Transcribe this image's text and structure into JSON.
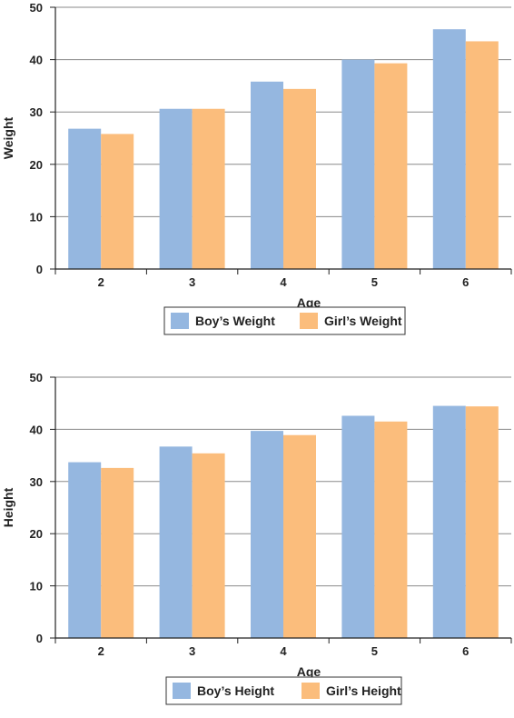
{
  "chart_data": [
    {
      "type": "bar",
      "categories": [
        "2",
        "3",
        "4",
        "5",
        "6"
      ],
      "series": [
        {
          "name": "Boy’s Weight",
          "values": [
            26.8,
            30.6,
            35.8,
            40.0,
            45.8
          ]
        },
        {
          "name": "Girl’s Weight",
          "values": [
            25.8,
            30.6,
            34.4,
            39.3,
            43.5
          ]
        }
      ],
      "title": "",
      "xlabel": "Age",
      "ylabel": "Weight",
      "ylim": [
        0,
        50
      ],
      "yticks": [
        "0",
        "10",
        "20",
        "30",
        "40",
        "50"
      ],
      "grid": true,
      "legend_position": "bottom",
      "colors": [
        "#95b7e0",
        "#fbbd7c"
      ]
    },
    {
      "type": "bar",
      "categories": [
        "2",
        "3",
        "4",
        "5",
        "6"
      ],
      "series": [
        {
          "name": "Boy’s Height",
          "values": [
            33.7,
            36.7,
            39.7,
            42.6,
            44.5
          ]
        },
        {
          "name": "Girl’s Height",
          "values": [
            32.6,
            35.4,
            38.9,
            41.5,
            44.4
          ]
        }
      ],
      "title": "",
      "xlabel": "Age",
      "ylabel": "Height",
      "ylim": [
        0,
        50
      ],
      "yticks": [
        "0",
        "10",
        "20",
        "30",
        "40",
        "50"
      ],
      "grid": true,
      "legend_position": "bottom",
      "colors": [
        "#95b7e0",
        "#fbbd7c"
      ]
    }
  ]
}
